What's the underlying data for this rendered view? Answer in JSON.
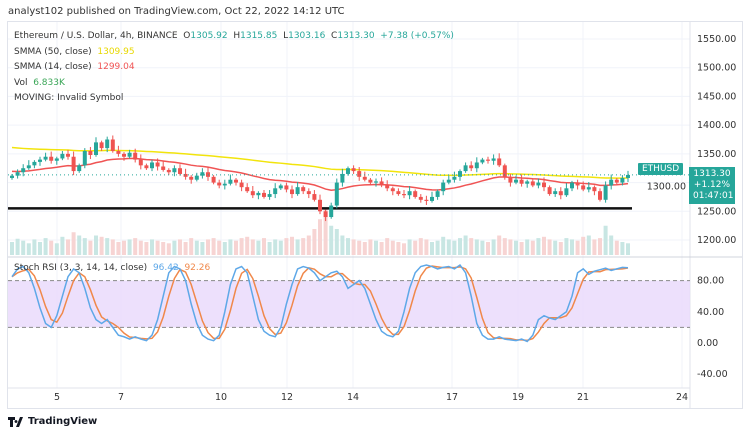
{
  "publisher_line": "analyst102 published on TradingView.com, Oct 22, 2022 14:12 UTC",
  "legend": {
    "symbol": "Ethereum / U.S. Dollar, 4h, BINANCE",
    "o_label": "O",
    "o": "1305.92",
    "h_label": "H",
    "h": "1315.85",
    "l_label": "L",
    "l": "1303.16",
    "c_label": "C",
    "c": "1313.30",
    "change": "+7.38 (+0.57%)",
    "smma50_label": "SMMA (50, close)",
    "smma50": "1309.95",
    "smma14_label": "SMMA (14, close)",
    "smma14": "1299.04",
    "vol_label": "Vol",
    "vol": "6.833K",
    "moving": "MOVING: Invalid Symbol"
  },
  "rsi_legend": {
    "label": "Stoch RSI (3, 3, 14, 14, close)",
    "k": "96.42",
    "d": "92.26"
  },
  "price_tag": {
    "symbol": "ETHUSD",
    "price": "1313.30",
    "change": "+1.12%",
    "countdown": "01:47:01"
  },
  "footer": {
    "brand": "TradingView"
  },
  "colors": {
    "up": "#26a69a",
    "down": "#ef5350",
    "smma50": "#f2e40c",
    "smma14": "#f05454",
    "k": "#5ea8e8",
    "d": "#f0884a",
    "band": "#e8d8fb"
  },
  "chart_data": [
    {
      "type": "candlestick",
      "ylim": [
        1180,
        1570
      ],
      "price_ticks": [
        "1550.00",
        "1500.00",
        "1450.00",
        "1400.00",
        "1350.00",
        "1300.00",
        "1250.00",
        "1200.00"
      ],
      "x_ticks": [
        "5",
        "7",
        "10",
        "12",
        "14",
        "17",
        "19",
        "21",
        "24"
      ],
      "support_level": 1255,
      "closes": [
        1312,
        1318,
        1325,
        1330,
        1336,
        1340,
        1345,
        1338,
        1342,
        1350,
        1345,
        1320,
        1330,
        1355,
        1348,
        1370,
        1360,
        1375,
        1355,
        1350,
        1345,
        1352,
        1340,
        1330,
        1325,
        1335,
        1328,
        1322,
        1318,
        1325,
        1315,
        1310,
        1305,
        1312,
        1318,
        1310,
        1300,
        1295,
        1298,
        1305,
        1300,
        1292,
        1285,
        1278,
        1282,
        1275,
        1280,
        1290,
        1295,
        1288,
        1280,
        1292,
        1285,
        1280,
        1270,
        1250,
        1240,
        1260,
        1300,
        1315,
        1325,
        1320,
        1310,
        1305,
        1300,
        1302,
        1295,
        1290,
        1285,
        1280,
        1278,
        1285,
        1275,
        1270,
        1268,
        1275,
        1285,
        1300,
        1305,
        1310,
        1320,
        1330,
        1325,
        1335,
        1340,
        1338,
        1342,
        1330,
        1310,
        1300,
        1305,
        1298,
        1302,
        1295,
        1300,
        1292,
        1280,
        1285,
        1278,
        1290,
        1300,
        1295,
        1288,
        1292,
        1285,
        1270,
        1295,
        1305,
        1300,
        1308,
        1313.3
      ],
      "volume": [
        20,
        25,
        22,
        18,
        24,
        20,
        26,
        22,
        18,
        28,
        24,
        35,
        30,
        26,
        22,
        30,
        28,
        26,
        24,
        20,
        22,
        24,
        26,
        22,
        20,
        24,
        22,
        20,
        18,
        22,
        24,
        20,
        26,
        22,
        20,
        24,
        26,
        22,
        20,
        24,
        22,
        26,
        28,
        24,
        22,
        26,
        20,
        24,
        22,
        26,
        28,
        24,
        26,
        30,
        40,
        55,
        70,
        45,
        40,
        30,
        26,
        24,
        22,
        20,
        24,
        22,
        20,
        26,
        22,
        20,
        18,
        24,
        22,
        26,
        24,
        20,
        22,
        28,
        24,
        22,
        26,
        30,
        26,
        24,
        22,
        20,
        24,
        30,
        26,
        24,
        22,
        20,
        24,
        22,
        26,
        28,
        24,
        22,
        20,
        26,
        24,
        22,
        28,
        30,
        24,
        26,
        45,
        30,
        22,
        20,
        18
      ]
    },
    {
      "type": "line",
      "title": "Stoch RSI (3, 3, 14, 14, close)",
      "ylim": [
        -50,
        110
      ],
      "y_ticks": [
        "80.00",
        "40.00",
        "0.00",
        "-40.00"
      ],
      "band": [
        20,
        80
      ],
      "k": [
        85,
        95,
        98,
        90,
        70,
        45,
        25,
        20,
        35,
        60,
        85,
        95,
        90,
        70,
        45,
        30,
        25,
        30,
        20,
        10,
        8,
        5,
        8,
        5,
        3,
        10,
        30,
        60,
        90,
        98,
        95,
        80,
        50,
        25,
        10,
        5,
        3,
        10,
        40,
        75,
        95,
        98,
        90,
        60,
        30,
        15,
        10,
        8,
        20,
        50,
        75,
        95,
        98,
        96,
        90,
        80,
        85,
        90,
        92,
        85,
        70,
        75,
        80,
        70,
        50,
        30,
        15,
        10,
        8,
        15,
        40,
        70,
        90,
        98,
        100,
        98,
        95,
        97,
        98,
        95,
        100,
        90,
        60,
        25,
        10,
        5,
        5,
        8,
        5,
        4,
        3,
        5,
        2,
        10,
        30,
        35,
        32,
        30,
        35,
        40,
        60,
        90,
        95,
        88,
        92,
        94,
        96,
        93,
        95,
        97,
        96.42
      ]
    }
  ]
}
